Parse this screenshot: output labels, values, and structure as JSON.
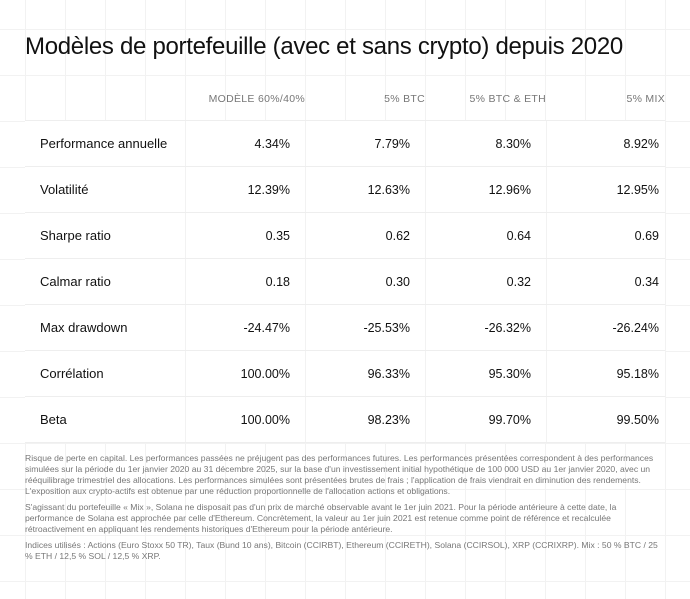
{
  "title": "Modèles de portefeuille (avec et sans crypto) depuis 2020",
  "table": {
    "headers": [
      "",
      "MODÈLE 60%/40%",
      "5% BTC",
      "5% BTC & ETH",
      "5% MIX"
    ],
    "rows": [
      {
        "label": "Performance annuelle",
        "values": [
          "4.34%",
          "7.79%",
          "8.30%",
          "8.92%"
        ]
      },
      {
        "label": "Volatilité",
        "values": [
          "12.39%",
          "12.63%",
          "12.96%",
          "12.95%"
        ]
      },
      {
        "label": "Sharpe ratio",
        "values": [
          "0.35",
          "0.62",
          "0.64",
          "0.69"
        ]
      },
      {
        "label": "Calmar ratio",
        "values": [
          "0.18",
          "0.30",
          "0.32",
          "0.34"
        ]
      },
      {
        "label": "Max drawdown",
        "values": [
          "-24.47%",
          "-25.53%",
          "-26.32%",
          "-26.24%"
        ]
      },
      {
        "label": "Corrélation",
        "values": [
          "100.00%",
          "96.33%",
          "95.30%",
          "95.18%"
        ]
      },
      {
        "label": "Beta",
        "values": [
          "100.00%",
          "98.23%",
          "99.70%",
          "99.50%"
        ]
      }
    ]
  },
  "notes": [
    "Risque de perte en capital. Les performances passées ne préjugent pas des performances futures. Les performances présentées correspondent à des performances simulées sur la période du 1er janvier 2020 au 31 décembre 2025, sur la base d'un investissement initial hypothétique de 100 000 USD au 1er janvier 2020, avec un rééquilibrage trimestriel des allocations. Les performances simulées sont présentées brutes de frais ; l'application de frais viendrait en diminution des rendements. L'exposition aux crypto-actifs est obtenue par une réduction proportionnelle de l'allocation actions et obligations.",
    "S'agissant du portefeuille « Mix », Solana ne disposait pas d'un prix de marché observable avant le 1er juin 2021. Pour la période antérieure à cette date, la performance de Solana est approchée par celle d'Ethereum. Concrètement, la valeur au 1er juin 2021 est retenue comme point de référence et recalculée rétroactivement en appliquant les rendements historiques d'Ethereum pour la période antérieure.",
    "Indices utilisés : Actions (Euro Stoxx 50 TR), Taux (Bund 10 ans), Bitcoin (CCIRBT), Ethereum (CCIRETH), Solana (CCIRSOL), XRP (CCRIXRP). Mix : 50 % BTC / 25 % ETH / 12,5 % SOL / 12,5 % XRP."
  ]
}
